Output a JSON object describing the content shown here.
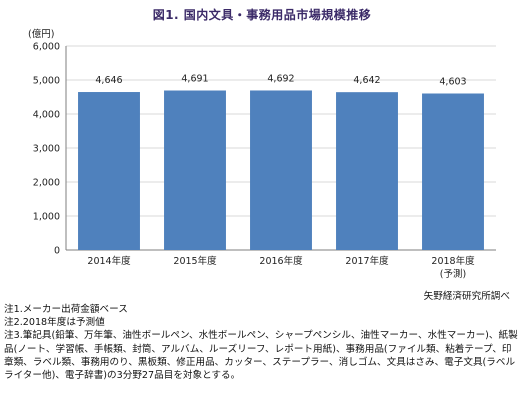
{
  "title": "図1. 国内文具・事務用品市場規模推移",
  "source": "矢野経済研究所調べ",
  "notes": [
    "注1.メーカー出荷金額ベース",
    "注2.2018年度は予測値",
    "注3.筆記具(鉛筆、万年筆、油性ボールペン、水性ボールペン、シャープペンシル、油性マーカー、水性マーカー)、紙製品(ノート、学習帳、手帳類、封筒、アルバム、ルーズリーフ、レポート用紙)、事務用品(ファイル類、粘着テープ、印章類、ラベル類、事務用のり、黒板類、修正用品、カッター、ステープラー、消しゴム、文具はさみ、電子文具(ラベルライター他)、電子辞書)の3分野27品目を対象とする。"
  ],
  "chart_data": {
    "type": "bar",
    "title": "図1. 国内文具・事務用品市場規模推移",
    "ylabel": "(億円)",
    "xlabel": "",
    "categories": [
      "2014年度",
      "2015年度",
      "2016年度",
      "2017年度",
      "2018年度"
    ],
    "category_sublabels": [
      "",
      "",
      "",
      "",
      "(予測)"
    ],
    "values": [
      4646,
      4691,
      4692,
      4642,
      4603
    ],
    "value_labels": [
      "4,646",
      "4,691",
      "4,692",
      "4,642",
      "4,603"
    ],
    "ylim": [
      0,
      6000
    ],
    "yticks": [
      0,
      1000,
      2000,
      3000,
      4000,
      5000,
      6000
    ],
    "ytick_labels": [
      "0",
      "1,000",
      "2,000",
      "3,000",
      "4,000",
      "5,000",
      "6,000"
    ],
    "grid": true,
    "bar_color": "#4f81bd"
  }
}
